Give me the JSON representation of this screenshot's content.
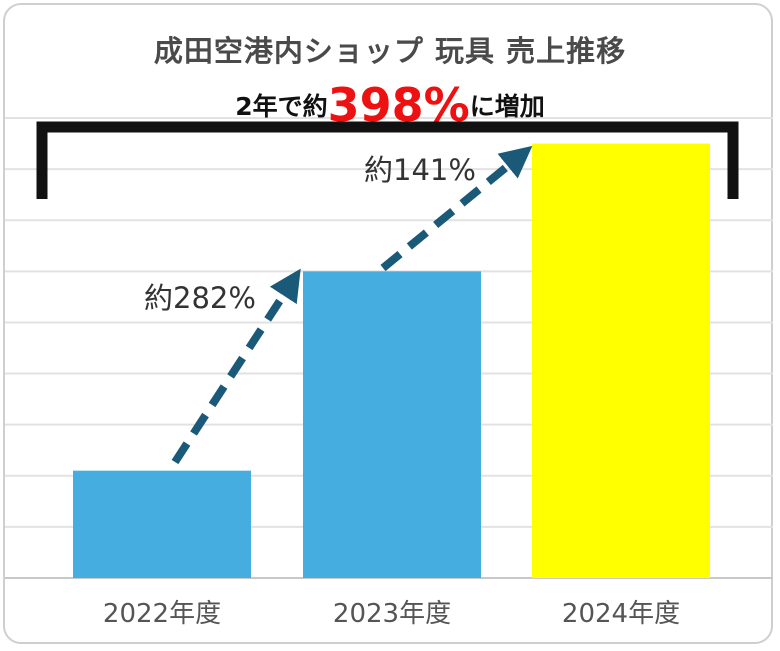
{
  "chart_data": {
    "type": "bar",
    "title": "成田空港内ショップ 玩具 売上推移",
    "subtitle": {
      "prefix": "2年で約",
      "highlight": "398%",
      "suffix": "に増加"
    },
    "categories": [
      "2022年度",
      "2023年度",
      "2024年度"
    ],
    "values": [
      21,
      60,
      85
    ],
    "ylim": [
      0,
      90
    ],
    "bar_colors": [
      "#45ADE0",
      "#45ADE0",
      "#FFFF00"
    ],
    "arrow_color": "#1A5A78",
    "highlight_color": "#EE1111",
    "grid": true,
    "annotations": [
      {
        "label": "約282%",
        "from": 0,
        "to": 1
      },
      {
        "label": "約141%",
        "from": 1,
        "to": 2
      }
    ],
    "bracket": {
      "from": 0,
      "to": 2
    }
  }
}
